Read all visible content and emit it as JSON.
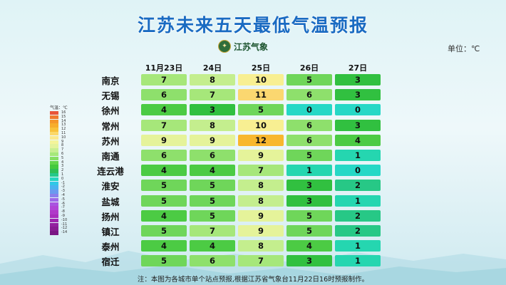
{
  "title": "江苏未来五天最低气温预报",
  "logo_text": "江苏气象",
  "unit_label": "单位：℃",
  "columns": [
    "11月23日",
    "24日",
    "25日",
    "26日",
    "27日"
  ],
  "cities": [
    "南京",
    "无锡",
    "徐州",
    "常州",
    "苏州",
    "南通",
    "连云港",
    "淮安",
    "盐城",
    "扬州",
    "镇江",
    "泰州",
    "宿迁"
  ],
  "temperatures": [
    [
      7,
      8,
      10,
      5,
      3
    ],
    [
      6,
      7,
      11,
      6,
      3
    ],
    [
      4,
      3,
      5,
      0,
      0
    ],
    [
      7,
      8,
      10,
      6,
      3
    ],
    [
      9,
      9,
      12,
      6,
      4
    ],
    [
      6,
      6,
      9,
      5,
      1
    ],
    [
      4,
      4,
      7,
      1,
      0
    ],
    [
      5,
      5,
      8,
      3,
      2
    ],
    [
      5,
      5,
      8,
      3,
      1
    ],
    [
      4,
      5,
      9,
      5,
      2
    ],
    [
      5,
      7,
      9,
      5,
      2
    ],
    [
      4,
      4,
      8,
      4,
      1
    ],
    [
      5,
      6,
      7,
      3,
      1
    ]
  ],
  "legend": {
    "title": "气温：℃",
    "values": [
      "16",
      "15",
      "14",
      "13",
      "12",
      "11",
      "10",
      "9",
      "8",
      "7",
      "6",
      "5",
      "4",
      "3",
      "2",
      "1",
      "0",
      "-1",
      "-2",
      "-3",
      "-4",
      "-5",
      "-6",
      "-7",
      "-8",
      "-9",
      "-10",
      "-11",
      "-12",
      "-14"
    ],
    "colors": [
      "#e8553a",
      "#f07a2e",
      "#f5962a",
      "#f7ad2c",
      "#f8c23a",
      "#fbd86a",
      "#fbe98e",
      "#f4f49a",
      "#e4f39c",
      "#c8ef92",
      "#a6e879",
      "#86df63",
      "#62d54a",
      "#44c93e",
      "#2fbe55",
      "#24c98b",
      "#26d6c0",
      "#30c8e6",
      "#4ab2ef",
      "#6a9aef",
      "#8a80ec",
      "#9d69e8",
      "#a955e0",
      "#b046d6",
      "#b03ac8",
      "#a82fbc",
      "#9f25ae",
      "#9420a0",
      "#881b92",
      "#7a1684"
    ]
  },
  "footnote": "注：本图为各城市单个站点预报,根据江苏省气象台11月22日16时预报制作。"
}
